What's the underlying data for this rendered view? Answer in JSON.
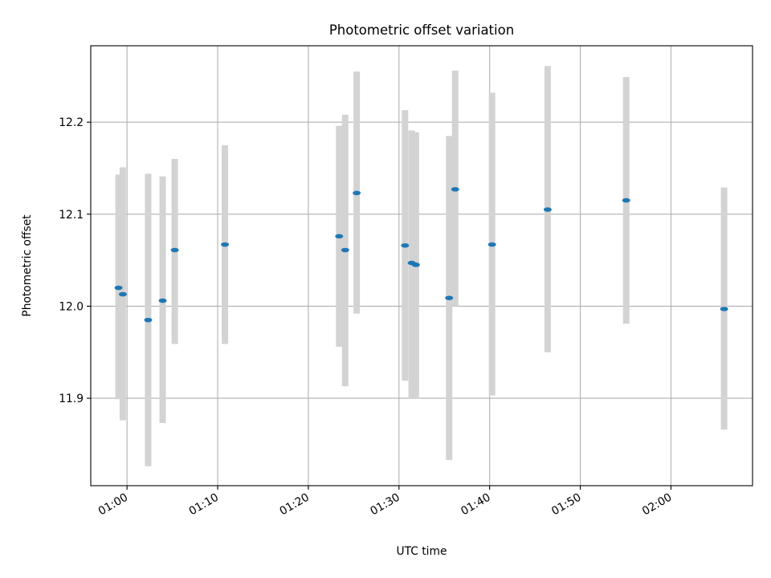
{
  "chart_data": {
    "type": "scatter",
    "title": "Photometric offset variation",
    "xlabel": "UTC time",
    "ylabel": "Photometric offset",
    "x_is_time": true,
    "xlim": [
      "00:56",
      "02:09"
    ],
    "ylim": [
      11.805,
      12.283
    ],
    "grid": true,
    "x_ticks": [
      "01:00",
      "01:10",
      "01:20",
      "01:30",
      "01:40",
      "01:50",
      "02:00"
    ],
    "y_ticks": [
      "11.9",
      "12.0",
      "12.1",
      "12.2"
    ],
    "series": [
      {
        "marker_color": "#1f77b4",
        "errorbar_color": "#d3d3d3",
        "points": [
          {
            "x": "00:59:04",
            "y": 12.02,
            "ylow": 11.899,
            "yhigh": 12.143
          },
          {
            "x": "00:59:32",
            "y": 12.013,
            "ylow": 11.876,
            "yhigh": 12.151
          },
          {
            "x": "01:02:20",
            "y": 11.985,
            "ylow": 11.826,
            "yhigh": 12.144
          },
          {
            "x": "01:03:56",
            "y": 12.006,
            "ylow": 11.873,
            "yhigh": 12.141
          },
          {
            "x": "01:05:16",
            "y": 12.061,
            "ylow": 11.959,
            "yhigh": 12.16
          },
          {
            "x": "01:10:48",
            "y": 12.067,
            "ylow": 11.959,
            "yhigh": 12.175
          },
          {
            "x": "01:23:24",
            "y": 12.076,
            "ylow": 11.956,
            "yhigh": 12.196
          },
          {
            "x": "01:24:04",
            "y": 12.061,
            "ylow": 11.913,
            "yhigh": 12.208
          },
          {
            "x": "01:25:20",
            "y": 12.123,
            "ylow": 11.992,
            "yhigh": 12.255
          },
          {
            "x": "01:30:40",
            "y": 12.066,
            "ylow": 11.919,
            "yhigh": 12.213
          },
          {
            "x": "01:31:24",
            "y": 12.047,
            "ylow": 11.9,
            "yhigh": 12.191
          },
          {
            "x": "01:31:52",
            "y": 12.045,
            "ylow": 11.9,
            "yhigh": 12.189
          },
          {
            "x": "01:35:32",
            "y": 12.009,
            "ylow": 11.833,
            "yhigh": 12.185
          },
          {
            "x": "01:36:12",
            "y": 12.127,
            "ylow": 12.0,
            "yhigh": 12.256
          },
          {
            "x": "01:40:16",
            "y": 12.067,
            "ylow": 11.903,
            "yhigh": 12.232
          },
          {
            "x": "01:46:24",
            "y": 12.105,
            "ylow": 11.95,
            "yhigh": 12.261
          },
          {
            "x": "01:55:04",
            "y": 12.115,
            "ylow": 11.981,
            "yhigh": 12.249
          },
          {
            "x": "02:05:52",
            "y": 11.997,
            "ylow": 11.866,
            "yhigh": 12.129
          }
        ]
      }
    ]
  }
}
